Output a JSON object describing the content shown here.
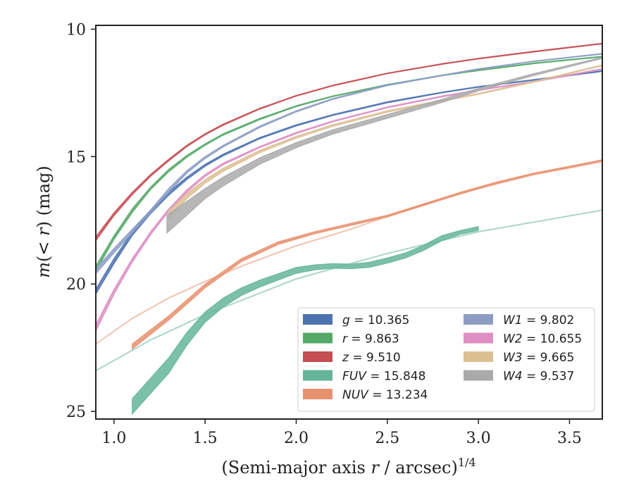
{
  "chart_data": {
    "type": "line",
    "xlabel": "(Semi-major axis r / arcsec)^{1/4}",
    "ylabel": "m(< r) (mag)",
    "xlim": [
      0.9,
      3.68
    ],
    "ylim": [
      25.3,
      9.85
    ],
    "y_inverted": true,
    "grid": false,
    "legend_position": "lower-right",
    "legend_columns": 2,
    "x_ticks": [
      1.0,
      1.5,
      2.0,
      2.5,
      3.0,
      3.5
    ],
    "x_tick_labels": [
      "1.0",
      "1.5",
      "2.0",
      "2.5",
      "3.0",
      "3.5"
    ],
    "y_ticks": [
      10,
      15,
      20,
      25
    ],
    "y_tick_labels": [
      "10",
      "15",
      "20",
      "25"
    ],
    "series": [
      {
        "name": "g = 10.365",
        "label_var": "g",
        "label_val": "= 10.365",
        "color": "#4c72b0",
        "band": [
          {
            "x": 0.9,
            "lo": 20.2,
            "hi": 20.4
          },
          {
            "x": 1.0,
            "lo": 19.0,
            "hi": 19.2
          },
          {
            "x": 1.1,
            "lo": 17.95,
            "hi": 18.1
          },
          {
            "x": 1.2,
            "lo": 17.1,
            "hi": 17.25
          },
          {
            "x": 1.3,
            "lo": 16.4,
            "hi": 16.52
          },
          {
            "x": 1.4,
            "lo": 15.8,
            "hi": 15.9
          },
          {
            "x": 1.5,
            "lo": 15.3,
            "hi": 15.38
          },
          {
            "x": 1.6,
            "lo": 14.9,
            "hi": 14.97
          },
          {
            "x": 1.8,
            "lo": 14.25,
            "hi": 14.3
          },
          {
            "x": 2.0,
            "lo": 13.75,
            "hi": 13.8
          },
          {
            "x": 2.2,
            "lo": 13.35,
            "hi": 13.39
          },
          {
            "x": 2.5,
            "lo": 12.85,
            "hi": 12.89
          },
          {
            "x": 2.8,
            "lo": 12.47,
            "hi": 12.5
          },
          {
            "x": 3.0,
            "lo": 12.25,
            "hi": 12.28
          },
          {
            "x": 3.3,
            "lo": 11.98,
            "hi": 12.01
          },
          {
            "x": 3.68,
            "lo": 11.63,
            "hi": 11.66
          }
        ]
      },
      {
        "name": "r = 9.863",
        "label_var": "r",
        "label_val": "= 9.863",
        "color": "#55a868",
        "band": [
          {
            "x": 0.9,
            "lo": 19.3,
            "hi": 19.5
          },
          {
            "x": 1.0,
            "lo": 18.1,
            "hi": 18.25
          },
          {
            "x": 1.1,
            "lo": 17.05,
            "hi": 17.2
          },
          {
            "x": 1.2,
            "lo": 16.2,
            "hi": 16.3
          },
          {
            "x": 1.3,
            "lo": 15.5,
            "hi": 15.6
          },
          {
            "x": 1.4,
            "lo": 14.95,
            "hi": 15.03
          },
          {
            "x": 1.5,
            "lo": 14.5,
            "hi": 14.56
          },
          {
            "x": 1.6,
            "lo": 14.1,
            "hi": 14.16
          },
          {
            "x": 1.8,
            "lo": 13.5,
            "hi": 13.55
          },
          {
            "x": 2.0,
            "lo": 13.0,
            "hi": 13.04
          },
          {
            "x": 2.2,
            "lo": 12.62,
            "hi": 12.65
          },
          {
            "x": 2.5,
            "lo": 12.17,
            "hi": 12.2
          },
          {
            "x": 2.8,
            "lo": 11.8,
            "hi": 11.83
          },
          {
            "x": 3.0,
            "lo": 11.6,
            "hi": 11.63
          },
          {
            "x": 3.3,
            "lo": 11.33,
            "hi": 11.36
          },
          {
            "x": 3.68,
            "lo": 11.06,
            "hi": 11.09
          }
        ]
      },
      {
        "name": "z = 9.510",
        "label_var": "z",
        "label_val": "= 9.510",
        "color": "#c44e52",
        "band": [
          {
            "x": 0.9,
            "lo": 18.15,
            "hi": 18.3
          },
          {
            "x": 1.0,
            "lo": 17.2,
            "hi": 17.32
          },
          {
            "x": 1.1,
            "lo": 16.4,
            "hi": 16.5
          },
          {
            "x": 1.2,
            "lo": 15.7,
            "hi": 15.78
          },
          {
            "x": 1.3,
            "lo": 15.1,
            "hi": 15.17
          },
          {
            "x": 1.4,
            "lo": 14.55,
            "hi": 14.61
          },
          {
            "x": 1.5,
            "lo": 14.1,
            "hi": 14.15
          },
          {
            "x": 1.6,
            "lo": 13.72,
            "hi": 13.77
          },
          {
            "x": 1.8,
            "lo": 13.1,
            "hi": 13.14
          },
          {
            "x": 2.0,
            "lo": 12.6,
            "hi": 12.63
          },
          {
            "x": 2.2,
            "lo": 12.2,
            "hi": 12.23
          },
          {
            "x": 2.5,
            "lo": 11.72,
            "hi": 11.75
          },
          {
            "x": 2.8,
            "lo": 11.35,
            "hi": 11.38
          },
          {
            "x": 3.0,
            "lo": 11.14,
            "hi": 11.17
          },
          {
            "x": 3.3,
            "lo": 10.87,
            "hi": 10.9
          },
          {
            "x": 3.68,
            "lo": 10.55,
            "hi": 10.58
          }
        ]
      },
      {
        "name": "FUV = 15.848",
        "label_var": "FUV",
        "label_val": "= 15.848",
        "color": "#64b59a",
        "band": [
          {
            "x": 1.1,
            "lo": 24.5,
            "hi": 25.1
          },
          {
            "x": 1.3,
            "lo": 22.9,
            "hi": 23.5
          },
          {
            "x": 1.4,
            "lo": 21.9,
            "hi": 22.4
          },
          {
            "x": 1.5,
            "lo": 21.1,
            "hi": 21.5
          },
          {
            "x": 1.6,
            "lo": 20.55,
            "hi": 20.9
          },
          {
            "x": 1.7,
            "lo": 20.15,
            "hi": 20.45
          },
          {
            "x": 1.8,
            "lo": 19.85,
            "hi": 20.12
          },
          {
            "x": 1.9,
            "lo": 19.6,
            "hi": 19.85
          },
          {
            "x": 2.0,
            "lo": 19.35,
            "hi": 19.58
          },
          {
            "x": 2.1,
            "lo": 19.25,
            "hi": 19.45
          },
          {
            "x": 2.2,
            "lo": 19.2,
            "hi": 19.38
          },
          {
            "x": 2.3,
            "lo": 19.22,
            "hi": 19.4
          },
          {
            "x": 2.4,
            "lo": 19.15,
            "hi": 19.35
          },
          {
            "x": 2.5,
            "lo": 18.98,
            "hi": 19.18
          },
          {
            "x": 2.6,
            "lo": 18.78,
            "hi": 18.98
          },
          {
            "x": 2.7,
            "lo": 18.48,
            "hi": 18.68
          },
          {
            "x": 2.8,
            "lo": 18.1,
            "hi": 18.3
          },
          {
            "x": 2.9,
            "lo": 17.9,
            "hi": 18.05
          },
          {
            "x": 3.0,
            "lo": 17.75,
            "hi": 17.9
          }
        ],
        "line": [
          {
            "x": 0.9,
            "y": 23.4
          },
          {
            "x": 1.2,
            "y": 22.2
          },
          {
            "x": 1.5,
            "y": 21.2
          },
          {
            "x": 2.0,
            "y": 19.8
          },
          {
            "x": 2.5,
            "y": 18.8
          },
          {
            "x": 3.0,
            "y": 17.95
          },
          {
            "x": 3.68,
            "y": 17.1
          }
        ]
      },
      {
        "name": "NUV = 13.234",
        "label_var": "NUV",
        "label_val": "= 13.234",
        "color": "#e8916f",
        "band": [
          {
            "x": 1.1,
            "lo": 22.35,
            "hi": 22.55
          },
          {
            "x": 1.3,
            "lo": 21.25,
            "hi": 21.42
          },
          {
            "x": 1.5,
            "lo": 20.0,
            "hi": 20.15
          },
          {
            "x": 1.7,
            "lo": 19.0,
            "hi": 19.12
          },
          {
            "x": 1.9,
            "lo": 18.35,
            "hi": 18.45
          },
          {
            "x": 2.1,
            "lo": 17.95,
            "hi": 18.03
          },
          {
            "x": 2.3,
            "lo": 17.62,
            "hi": 17.7
          },
          {
            "x": 2.5,
            "lo": 17.3,
            "hi": 17.37
          },
          {
            "x": 2.7,
            "lo": 16.85,
            "hi": 16.92
          },
          {
            "x": 2.9,
            "lo": 16.4,
            "hi": 16.47
          },
          {
            "x": 3.1,
            "lo": 16.0,
            "hi": 16.06
          },
          {
            "x": 3.3,
            "lo": 15.65,
            "hi": 15.7
          },
          {
            "x": 3.5,
            "lo": 15.38,
            "hi": 15.43
          },
          {
            "x": 3.68,
            "lo": 15.12,
            "hi": 15.17
          }
        ],
        "line": [
          {
            "x": 0.9,
            "y": 22.35
          },
          {
            "x": 1.1,
            "y": 21.35
          },
          {
            "x": 1.3,
            "y": 20.55
          },
          {
            "x": 1.5,
            "y": 19.9
          },
          {
            "x": 1.7,
            "y": 19.3
          },
          {
            "x": 2.0,
            "y": 18.5
          },
          {
            "x": 2.3,
            "y": 17.85
          },
          {
            "x": 2.6,
            "y": 17.1
          },
          {
            "x": 3.0,
            "y": 16.25
          },
          {
            "x": 3.3,
            "y": 15.72
          },
          {
            "x": 3.68,
            "y": 15.2
          }
        ]
      },
      {
        "name": "W1 = 9.802",
        "label_var": "W1",
        "label_val": "= 9.802",
        "color": "#8c9dc4",
        "band": [
          {
            "x": 0.9,
            "lo": 19.4,
            "hi": 19.6
          },
          {
            "x": 1.0,
            "lo": 18.6,
            "hi": 18.78
          },
          {
            "x": 1.1,
            "lo": 17.85,
            "hi": 18.0
          },
          {
            "x": 1.2,
            "lo": 17.1,
            "hi": 17.22
          },
          {
            "x": 1.3,
            "lo": 16.25,
            "hi": 16.4
          },
          {
            "x": 1.4,
            "lo": 15.55,
            "hi": 15.65
          },
          {
            "x": 1.5,
            "lo": 15.0,
            "hi": 15.08
          },
          {
            "x": 1.6,
            "lo": 14.55,
            "hi": 14.62
          },
          {
            "x": 1.8,
            "lo": 13.8,
            "hi": 13.86
          },
          {
            "x": 2.0,
            "lo": 13.2,
            "hi": 13.25
          },
          {
            "x": 2.2,
            "lo": 12.72,
            "hi": 12.76
          },
          {
            "x": 2.5,
            "lo": 12.18,
            "hi": 12.22
          },
          {
            "x": 2.8,
            "lo": 11.8,
            "hi": 11.83
          },
          {
            "x": 3.0,
            "lo": 11.55,
            "hi": 11.58
          },
          {
            "x": 3.3,
            "lo": 11.25,
            "hi": 11.28
          },
          {
            "x": 3.68,
            "lo": 10.95,
            "hi": 10.98
          }
        ]
      },
      {
        "name": "W2 = 10.655",
        "label_var": "W2",
        "label_val": "= 10.655",
        "color": "#dd8fc4",
        "band": [
          {
            "x": 0.9,
            "lo": 21.6,
            "hi": 21.85
          },
          {
            "x": 1.0,
            "lo": 20.2,
            "hi": 20.4
          },
          {
            "x": 1.1,
            "lo": 19.0,
            "hi": 19.15
          },
          {
            "x": 1.2,
            "lo": 17.95,
            "hi": 18.08
          },
          {
            "x": 1.3,
            "lo": 17.05,
            "hi": 17.15
          },
          {
            "x": 1.4,
            "lo": 16.3,
            "hi": 16.4
          },
          {
            "x": 1.5,
            "lo": 15.7,
            "hi": 15.78
          },
          {
            "x": 1.6,
            "lo": 15.25,
            "hi": 15.32
          },
          {
            "x": 1.8,
            "lo": 14.6,
            "hi": 14.65
          },
          {
            "x": 2.0,
            "lo": 14.05,
            "hi": 14.1
          },
          {
            "x": 2.2,
            "lo": 13.6,
            "hi": 13.64
          },
          {
            "x": 2.5,
            "lo": 13.05,
            "hi": 13.09
          },
          {
            "x": 2.8,
            "lo": 12.62,
            "hi": 12.66
          },
          {
            "x": 3.0,
            "lo": 12.38,
            "hi": 12.41
          },
          {
            "x": 3.3,
            "lo": 12.05,
            "hi": 12.08
          },
          {
            "x": 3.68,
            "lo": 11.55,
            "hi": 11.58
          }
        ]
      },
      {
        "name": "W3 = 9.665",
        "label_var": "W3",
        "label_val": "= 9.665",
        "color": "#ddbf94",
        "band": [
          {
            "x": 1.3,
            "lo": 17.15,
            "hi": 17.4
          },
          {
            "x": 1.4,
            "lo": 16.45,
            "hi": 16.65
          },
          {
            "x": 1.5,
            "lo": 15.9,
            "hi": 16.05
          },
          {
            "x": 1.6,
            "lo": 15.45,
            "hi": 15.58
          },
          {
            "x": 1.8,
            "lo": 14.75,
            "hi": 14.85
          },
          {
            "x": 2.0,
            "lo": 14.2,
            "hi": 14.28
          },
          {
            "x": 2.2,
            "lo": 13.75,
            "hi": 13.82
          },
          {
            "x": 2.5,
            "lo": 13.2,
            "hi": 13.26
          },
          {
            "x": 2.8,
            "lo": 12.78,
            "hi": 12.83
          },
          {
            "x": 3.0,
            "lo": 12.52,
            "hi": 12.56
          },
          {
            "x": 3.3,
            "lo": 12.05,
            "hi": 12.09
          },
          {
            "x": 3.68,
            "lo": 11.4,
            "hi": 11.44
          }
        ]
      },
      {
        "name": "W4 = 9.537",
        "label_var": "W4",
        "label_val": "= 9.537",
        "color": "#aaaaaa",
        "band": [
          {
            "x": 1.29,
            "lo": 17.3,
            "hi": 18.0
          },
          {
            "x": 1.4,
            "lo": 16.75,
            "hi": 17.3
          },
          {
            "x": 1.5,
            "lo": 16.25,
            "hi": 16.65
          },
          {
            "x": 1.6,
            "lo": 15.8,
            "hi": 16.15
          },
          {
            "x": 1.8,
            "lo": 15.05,
            "hi": 15.3
          },
          {
            "x": 2.0,
            "lo": 14.45,
            "hi": 14.65
          },
          {
            "x": 2.2,
            "lo": 13.95,
            "hi": 14.12
          },
          {
            "x": 2.5,
            "lo": 13.35,
            "hi": 13.5
          },
          {
            "x": 2.8,
            "lo": 12.75,
            "hi": 12.88
          },
          {
            "x": 3.0,
            "lo": 12.32,
            "hi": 12.42
          },
          {
            "x": 3.3,
            "lo": 11.75,
            "hi": 11.83
          },
          {
            "x": 3.68,
            "lo": 11.1,
            "hi": 11.15
          }
        ]
      }
    ]
  }
}
